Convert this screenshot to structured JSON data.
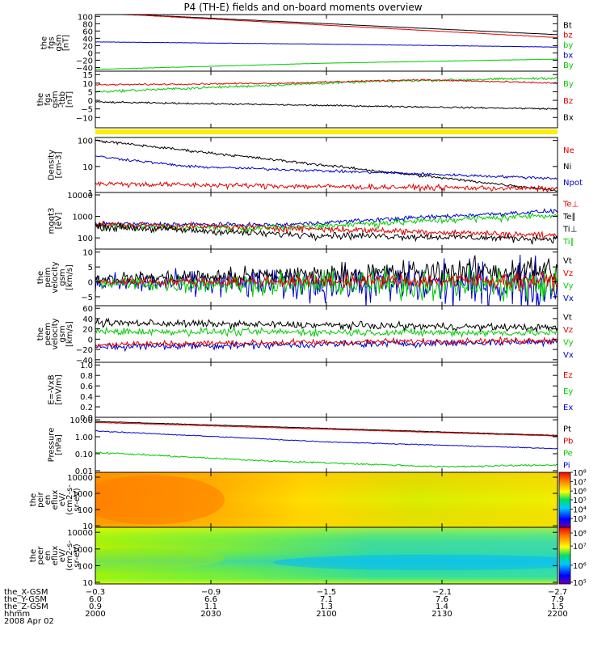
{
  "title": "P4 (TH-E) fields and on-board moments overview",
  "colors": {
    "black": "#000000",
    "red": "#e00000",
    "green": "#00cc00",
    "blue": "#0000cc",
    "yellow": "#ffee00"
  },
  "x_ticks": [
    "2000",
    "2030",
    "2100",
    "2130",
    "2200"
  ],
  "chart_data": [
    {
      "id": "fgs_gsm",
      "type": "line",
      "ylabel": [
        "the",
        "fgs",
        "gsm",
        "[nT]"
      ],
      "ylim": [
        -50,
        105
      ],
      "ticks": [
        {
          "v": 100,
          "t": "100"
        },
        {
          "v": 80,
          "t": "80"
        },
        {
          "v": 60,
          "t": "60"
        },
        {
          "v": 40,
          "t": "40"
        },
        {
          "v": 20,
          "t": "20"
        },
        {
          "v": 0,
          "t": "0"
        },
        {
          "v": -20,
          "t": "−20"
        },
        {
          "v": -40,
          "t": "−40"
        }
      ],
      "legend": [
        {
          "t": "Bt",
          "c": "black"
        },
        {
          "t": "bz",
          "c": "red"
        },
        {
          "t": "by",
          "c": "green"
        },
        {
          "t": "bx",
          "c": "blue"
        },
        {
          "t": "By",
          "c": "green"
        }
      ],
      "series": [
        {
          "color": "black",
          "x": [
            0,
            0.1,
            1
          ],
          "y": [
            108,
            104,
            50
          ],
          "noise": 0.3
        },
        {
          "color": "red",
          "x": [
            0,
            0.1,
            1
          ],
          "y": [
            108,
            103,
            42
          ],
          "noise": 0.4
        },
        {
          "color": "blue",
          "x": [
            0,
            0.5,
            1
          ],
          "y": [
            30,
            24,
            16
          ],
          "noise": 0.5
        },
        {
          "color": "green",
          "x": [
            0,
            0.5,
            1
          ],
          "y": [
            -45,
            -28,
            -17
          ],
          "noise": 0.4
        }
      ]
    },
    {
      "id": "fgs_gse",
      "type": "line",
      "ylabel": [
        "the",
        "fgs",
        "gsm",
        "-tbb",
        "[nT]"
      ],
      "ylim": [
        -16,
        17
      ],
      "ticks": [
        {
          "v": 15,
          "t": "15"
        },
        {
          "v": 10,
          "t": "10"
        },
        {
          "v": 5,
          "t": "5"
        },
        {
          "v": 0,
          "t": "0"
        },
        {
          "v": -5,
          "t": "−5"
        },
        {
          "v": -10,
          "t": "−10"
        }
      ],
      "legend": [
        {
          "t": "By",
          "c": "green"
        },
        {
          "t": "Bz",
          "c": "red"
        },
        {
          "t": "Bx",
          "c": "black"
        }
      ],
      "series": [
        {
          "color": "green",
          "x": [
            0,
            0.3,
            0.6,
            1
          ],
          "y": [
            5,
            8,
            11,
            13
          ],
          "noise": 0.6
        },
        {
          "color": "red",
          "x": [
            0,
            0.4,
            0.7,
            1
          ],
          "y": [
            9,
            10,
            12,
            10
          ],
          "noise": 0.4
        },
        {
          "color": "black",
          "x": [
            0,
            0.5,
            1
          ],
          "y": [
            -1,
            -3,
            -5
          ],
          "noise": 0.4
        }
      ]
    },
    {
      "id": "density",
      "type": "line",
      "log": true,
      "ylabel": [
        "Density",
        "[cm-3]"
      ],
      "ylim": [
        1,
        130
      ],
      "ticks": [
        {
          "v": 100,
          "t": "100"
        },
        {
          "v": 10,
          "t": "10"
        },
        {
          "v": 1,
          "t": "1"
        }
      ],
      "legend": [
        {
          "t": "Ne",
          "c": "red"
        },
        {
          "t": "Ni",
          "c": "black"
        },
        {
          "t": "Npot",
          "c": "blue"
        }
      ],
      "series": [
        {
          "color": "black",
          "x": [
            0,
            1
          ],
          "y": [
            100,
            1.2
          ],
          "noise": 0.01
        },
        {
          "color": "blue",
          "x": [
            0,
            0.2,
            1
          ],
          "y": [
            25,
            10,
            3.5
          ],
          "noise": 0.01
        },
        {
          "color": "red",
          "x": [
            0,
            0.5,
            1
          ],
          "y": [
            2.2,
            1.7,
            1.4
          ],
          "noise": 0.02
        }
      ]
    },
    {
      "id": "temperature",
      "type": "line",
      "log": true,
      "ylabel": [
        "mgqt3",
        "[eV]"
      ],
      "ylim": [
        30,
        13000
      ],
      "ticks": [
        {
          "v": 10000,
          "t": "10000"
        },
        {
          "v": 1000,
          "t": "1000"
        },
        {
          "v": 100,
          "t": "100"
        }
      ],
      "legend": [
        {
          "t": "Te⊥",
          "c": "red"
        },
        {
          "t": "Te∥",
          "c": "black"
        },
        {
          "t": "Ti⊥",
          "c": "black"
        },
        {
          "t": "Ti∥",
          "c": "green"
        }
      ],
      "series": [
        {
          "color": "blue",
          "x": [
            0,
            0.4,
            0.7,
            1
          ],
          "y": [
            450,
            400,
            900,
            1800
          ],
          "noise": 0.02
        },
        {
          "color": "green",
          "x": [
            0,
            0.4,
            0.7,
            1
          ],
          "y": [
            350,
            300,
            600,
            1200
          ],
          "noise": 0.03
        },
        {
          "color": "red",
          "x": [
            0,
            0.4,
            1
          ],
          "y": [
            420,
            300,
            130
          ],
          "noise": 0.03
        },
        {
          "color": "black",
          "x": [
            0,
            0.4,
            1
          ],
          "y": [
            350,
            150,
            90
          ],
          "noise": 0.03
        }
      ]
    },
    {
      "id": "peim_velocity",
      "type": "line",
      "ylabel": [
        "the",
        "peim",
        "velocity",
        "gsm",
        "[km/s]"
      ],
      "ylim": [
        -8,
        11
      ],
      "ticks": [
        {
          "v": 10,
          "t": "10"
        },
        {
          "v": 5,
          "t": "5"
        },
        {
          "v": 0,
          "t": "0"
        },
        {
          "v": -5,
          "t": "−5"
        }
      ],
      "legend": [
        {
          "t": "Vt",
          "c": "black"
        },
        {
          "t": "Vz",
          "c": "red"
        },
        {
          "t": "Vy",
          "c": "green"
        },
        {
          "t": "Vx",
          "c": "blue"
        }
      ],
      "series": [
        {
          "color": "blue",
          "x": [
            0,
            1
          ],
          "y": [
            -0.5,
            -1
          ],
          "noise": 2.5,
          "grow": 2
        },
        {
          "color": "black",
          "x": [
            0,
            1
          ],
          "y": [
            1,
            4
          ],
          "noise": 1.5,
          "grow": 2
        },
        {
          "color": "green",
          "x": [
            0,
            1
          ],
          "y": [
            -0.5,
            -1
          ],
          "noise": 1.8,
          "grow": 2
        },
        {
          "color": "red",
          "x": [
            0,
            1
          ],
          "y": [
            0,
            0.5
          ],
          "noise": 1,
          "grow": 1.5
        }
      ]
    },
    {
      "id": "peem_velocity",
      "type": "line",
      "ylabel": [
        "the",
        "peem",
        "velocity",
        "gsm",
        "[km/s]"
      ],
      "ylim": [
        -45,
        65
      ],
      "ticks": [
        {
          "v": 60,
          "t": "60"
        },
        {
          "v": 40,
          "t": "40"
        },
        {
          "v": 20,
          "t": "20"
        },
        {
          "v": 0,
          "t": "0"
        },
        {
          "v": -20,
          "t": "−20"
        },
        {
          "v": -40,
          "t": "−40"
        }
      ],
      "legend": [
        {
          "t": "Vt",
          "c": "black"
        },
        {
          "t": "Vz",
          "c": "red"
        },
        {
          "t": "Vy",
          "c": "green"
        },
        {
          "t": "Vx",
          "c": "blue"
        }
      ],
      "series": [
        {
          "color": "black",
          "x": [
            0,
            1
          ],
          "y": [
            32,
            22
          ],
          "noise": 6
        },
        {
          "color": "green",
          "x": [
            0,
            1
          ],
          "y": [
            15,
            12
          ],
          "noise": 6
        },
        {
          "color": "blue",
          "x": [
            0,
            1
          ],
          "y": [
            -15,
            -5
          ],
          "noise": 6
        },
        {
          "color": "red",
          "x": [
            0,
            1
          ],
          "y": [
            -10,
            -2
          ],
          "noise": 5
        }
      ]
    },
    {
      "id": "efield",
      "type": "line",
      "ylabel": [
        "E=-VxB",
        "[mV/m]"
      ],
      "ylim": [
        0,
        1.05
      ],
      "ticks": [
        {
          "v": 1.0,
          "t": "1.0"
        },
        {
          "v": 0.8,
          "t": "0.8"
        },
        {
          "v": 0.6,
          "t": "0.6"
        },
        {
          "v": 0.4,
          "t": "0.4"
        },
        {
          "v": 0.2,
          "t": "0.2"
        },
        {
          "v": 0.0,
          "t": "0.0"
        }
      ],
      "legend": [
        {
          "t": "Ez",
          "c": "red"
        },
        {
          "t": "Ey",
          "c": "green"
        },
        {
          "t": "Ex",
          "c": "blue"
        }
      ],
      "series": []
    },
    {
      "id": "pressure",
      "type": "line",
      "log": true,
      "ylabel": [
        "Pressure",
        "[nPa]"
      ],
      "ylim": [
        0.008,
        14
      ],
      "ticks": [
        {
          "v": 10,
          "t": "10.00"
        },
        {
          "v": 1,
          "t": "1.00"
        },
        {
          "v": 0.1,
          "t": "0.10"
        },
        {
          "v": 0.01,
          "t": "0.01"
        }
      ],
      "legend": [
        {
          "t": "Pt",
          "c": "black"
        },
        {
          "t": "Pb",
          "c": "red"
        },
        {
          "t": "Pe",
          "c": "green"
        },
        {
          "t": "Pi",
          "c": "blue"
        }
      ],
      "series": [
        {
          "color": "black",
          "x": [
            0,
            1
          ],
          "y": [
            8,
            1.2
          ],
          "noise": 0.003
        },
        {
          "color": "red",
          "x": [
            0,
            1
          ],
          "y": [
            7,
            1.1
          ],
          "noise": 0.003
        },
        {
          "color": "blue",
          "x": [
            0,
            0.5,
            1
          ],
          "y": [
            2.2,
            0.5,
            0.2
          ],
          "noise": 0.005
        },
        {
          "color": "green",
          "x": [
            0,
            0.35,
            0.75,
            1
          ],
          "y": [
            0.12,
            0.04,
            0.017,
            0.022
          ],
          "noise": 0.01
        }
      ]
    },
    {
      "id": "peir_spec",
      "type": "heatmap",
      "ylabel": [
        "the",
        "peir",
        "en",
        "eflux",
        "eV/",
        "(cm2-s-",
        "sr-eV)"
      ],
      "ylim": [
        8,
        20000
      ],
      "log": true,
      "ticks": [
        {
          "v": 10000,
          "t": "10000"
        },
        {
          "v": 1000,
          "t": "1000"
        },
        {
          "v": 100,
          "t": "100"
        },
        {
          "v": 10,
          "t": "10"
        }
      ],
      "colorbar": [
        {
          "t": "10⁸",
          "v": 1
        },
        {
          "t": "10⁷",
          "v": 0.83
        },
        {
          "t": "10⁶",
          "v": 0.66
        },
        {
          "t": "10⁵",
          "v": 0.5
        },
        {
          "t": "10⁴",
          "v": 0.33
        },
        {
          "t": "10³",
          "v": 0.16
        }
      ]
    },
    {
      "id": "peer_spec",
      "type": "heatmap",
      "ylabel": [
        "the",
        "peer",
        "en",
        "eflux",
        "eV/",
        "(cm2-s-",
        "sr-eV)"
      ],
      "ylim": [
        8,
        20000
      ],
      "log": true,
      "ticks": [
        {
          "v": 10000,
          "t": "10000"
        },
        {
          "v": 1000,
          "t": "1000"
        },
        {
          "v": 100,
          "t": "100"
        },
        {
          "v": 10,
          "t": "10"
        }
      ],
      "colorbar": [
        {
          "t": "10⁸",
          "v": 0.9
        },
        {
          "t": "10⁷",
          "v": 0.67
        },
        {
          "t": "10⁶",
          "v": 0.33
        },
        {
          "t": "10⁵",
          "v": 0.03
        }
      ]
    }
  ],
  "footer": {
    "date": "2008 Apr 02",
    "rows": [
      {
        "label": "the_X-GSM",
        "values": [
          "−0.3",
          "−0.9",
          "−1.5",
          "−2.1",
          "−2.7"
        ]
      },
      {
        "label": "the_Y-GSM",
        "values": [
          "6.0",
          "6.6",
          "7.1",
          "7.6",
          "7.9"
        ]
      },
      {
        "label": "the_Z-GSM",
        "values": [
          "0.9",
          "1.1",
          "1.3",
          "1.4",
          "1.5"
        ]
      },
      {
        "label": "hhmm",
        "values": [
          "2000",
          "2030",
          "2100",
          "2130",
          "2200"
        ]
      }
    ]
  }
}
